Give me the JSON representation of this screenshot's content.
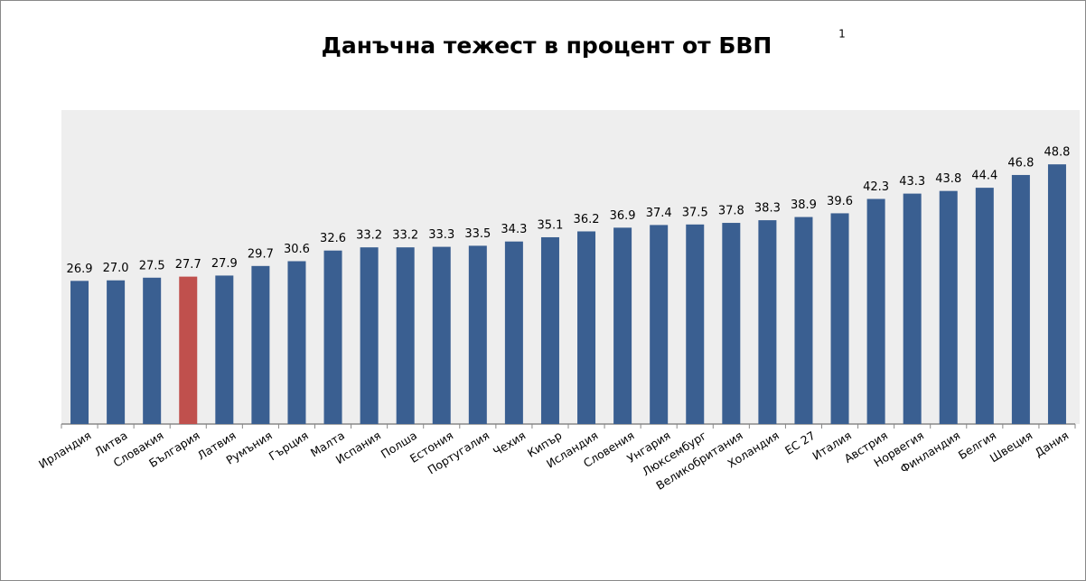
{
  "chart_data": {
    "type": "bar",
    "title": "Данъчна тежест в процент от БВП",
    "title_note": "1",
    "categories": [
      "Ирландия",
      "Литва",
      "Словакия",
      "България",
      "Латвия",
      "Румъния",
      "Гърция",
      "Малта",
      "Испания",
      "Полша",
      "Естония",
      "Португалия",
      "Чехия",
      "Кипър",
      "Исландия",
      "Словения",
      "Унгария",
      "Люксембург",
      "Великобритания",
      "Холандия",
      "ЕС 27",
      "Италия",
      "Австрия",
      "Норвегия",
      "Финландия",
      "Белгия",
      "Швеция",
      "Дания"
    ],
    "values": [
      26.9,
      27.0,
      27.5,
      27.7,
      27.9,
      29.7,
      30.6,
      32.6,
      33.2,
      33.2,
      33.3,
      33.5,
      34.3,
      35.1,
      36.2,
      36.9,
      37.4,
      37.5,
      37.8,
      38.3,
      38.9,
      39.6,
      42.3,
      43.3,
      43.8,
      44.4,
      46.8,
      48.8
    ],
    "value_labels": [
      "26.9",
      "27.0",
      "27.5",
      "27.7",
      "27.9",
      "29.7",
      "30.6",
      "32.6",
      "33.2",
      "33.2",
      "33.3",
      "33.5",
      "34.3",
      "35.1",
      "36.2",
      "36.9",
      "37.4",
      "37.5",
      "37.8",
      "38.3",
      "38.9",
      "39.6",
      "42.3",
      "43.3",
      "43.8",
      "44.4",
      "46.8",
      "48.8"
    ],
    "colors": [
      "#3a5f91",
      "#3a5f91",
      "#3a5f91",
      "#c0504d",
      "#3a5f91",
      "#3a5f91",
      "#3a5f91",
      "#3a5f91",
      "#3a5f91",
      "#3a5f91",
      "#3a5f91",
      "#3a5f91",
      "#3a5f91",
      "#3a5f91",
      "#3a5f91",
      "#3a5f91",
      "#3a5f91",
      "#3a5f91",
      "#3a5f91",
      "#3a5f91",
      "#3a5f91",
      "#3a5f91",
      "#3a5f91",
      "#3a5f91",
      "#3a5f91",
      "#3a5f91",
      "#3a5f91",
      "#3a5f91"
    ],
    "ylim": [
      0,
      59
    ]
  }
}
